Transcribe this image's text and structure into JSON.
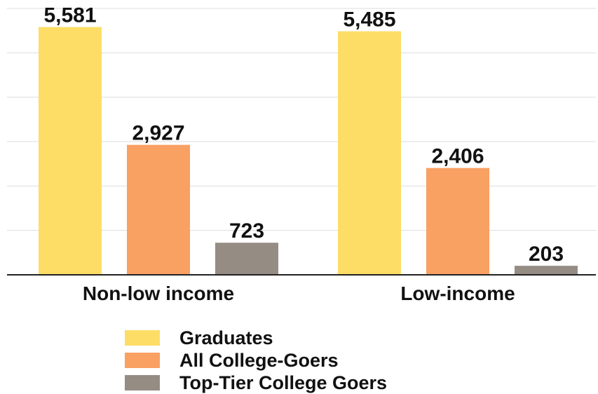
{
  "chart_data": {
    "type": "bar",
    "categories": [
      "Non-low income",
      "Low-income"
    ],
    "series": [
      {
        "name": "Graduates",
        "values": [
          5581,
          5485
        ],
        "labels": [
          "5,581",
          "5,485"
        ],
        "color": "#FDDD66"
      },
      {
        "name": "All College-Goers",
        "values": [
          2927,
          2406
        ],
        "labels": [
          "2,927",
          "2,406"
        ],
        "color": "#F9A063"
      },
      {
        "name": "Top-Tier College Goers",
        "values": [
          723,
          203
        ],
        "labels": [
          "723",
          "203"
        ],
        "color": "#958C84"
      }
    ],
    "ylim": [
      0,
      6000
    ],
    "grid": true,
    "legend_position": "bottom"
  }
}
